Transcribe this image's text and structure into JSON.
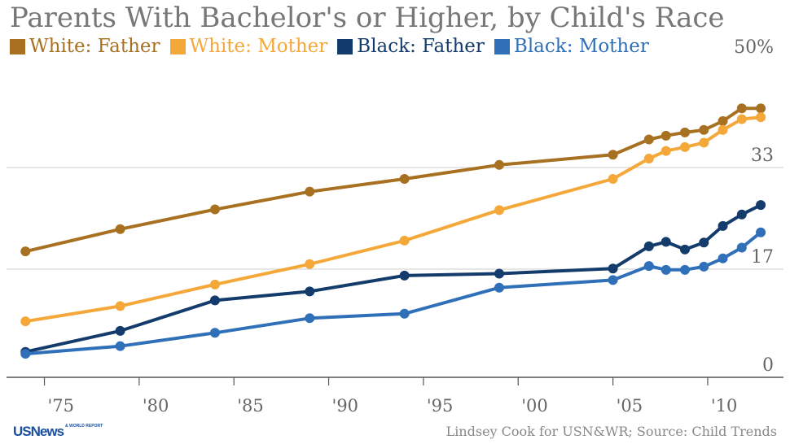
{
  "title": "Parents With Bachelor's or Higher, by Child's Race",
  "credit": "Lindsey Cook for USN&WR; Source: Child Trends",
  "logo": {
    "text": "USNews",
    "tag": "& WORLD REPORT"
  },
  "colors": {
    "white_father": "#a87121",
    "white_mother": "#f5a83a",
    "black_father": "#133b6b",
    "black_mother": "#2f70b8",
    "axis_text": "#666666",
    "grid": "#cccccc"
  },
  "chart_data": {
    "type": "line",
    "title": "Parents With Bachelor's or Higher, by Child's Race",
    "xlabel": "",
    "ylabel": "",
    "xlim": [
      1973,
      2014
    ],
    "ylim": [
      0,
      50
    ],
    "y_ticks": [
      {
        "value": 0,
        "label": "0"
      },
      {
        "value": 17,
        "label": "17"
      },
      {
        "value": 33,
        "label": "33"
      },
      {
        "value": 50,
        "label": "50%"
      }
    ],
    "x_ticks": [
      {
        "value": 1975,
        "label": "'75"
      },
      {
        "value": 1980,
        "label": "'80"
      },
      {
        "value": 1985,
        "label": "'85"
      },
      {
        "value": 1990,
        "label": "'90"
      },
      {
        "value": 1995,
        "label": "'95"
      },
      {
        "value": 2000,
        "label": "'00"
      },
      {
        "value": 2005,
        "label": "'05"
      },
      {
        "value": 2010,
        "label": "'10"
      }
    ],
    "grid": "horizontal",
    "legend_position": "top-left",
    "series": [
      {
        "name": "White: Father",
        "color": "#a87121",
        "points": [
          [
            1974,
            19.8
          ],
          [
            1979,
            23.3
          ],
          [
            1984,
            26.4
          ],
          [
            1989,
            29.2
          ],
          [
            1994,
            31.2
          ],
          [
            1999,
            33.4
          ],
          [
            2005,
            35.0
          ],
          [
            2006.9,
            37.4
          ],
          [
            2007.8,
            38.0
          ],
          [
            2008.8,
            38.5
          ],
          [
            2009.8,
            38.9
          ],
          [
            2010.8,
            40.3
          ],
          [
            2011.8,
            42.3
          ],
          [
            2012.8,
            42.3
          ]
        ]
      },
      {
        "name": "White: Mother",
        "color": "#f5a83a",
        "points": [
          [
            1974,
            8.8
          ],
          [
            1979,
            11.2
          ],
          [
            1984,
            14.6
          ],
          [
            1989,
            17.8
          ],
          [
            1994,
            21.5
          ],
          [
            1999,
            26.3
          ],
          [
            2005,
            31.2
          ],
          [
            2006.9,
            34.4
          ],
          [
            2007.8,
            35.6
          ],
          [
            2008.8,
            36.2
          ],
          [
            2009.8,
            36.9
          ],
          [
            2010.8,
            38.9
          ],
          [
            2011.8,
            40.6
          ],
          [
            2012.8,
            40.9
          ]
        ]
      },
      {
        "name": "Black: Father",
        "color": "#133b6b",
        "points": [
          [
            1974,
            4.0
          ],
          [
            1979,
            7.3
          ],
          [
            1984,
            12.1
          ],
          [
            1989,
            13.5
          ],
          [
            1994,
            16.0
          ],
          [
            1999,
            16.3
          ],
          [
            2005,
            17.1
          ],
          [
            2006.9,
            20.6
          ],
          [
            2007.8,
            21.3
          ],
          [
            2008.8,
            20.1
          ],
          [
            2009.8,
            21.2
          ],
          [
            2010.8,
            23.8
          ],
          [
            2011.8,
            25.6
          ],
          [
            2012.8,
            27.1
          ]
        ]
      },
      {
        "name": "Black: Mother",
        "color": "#2f70b8",
        "points": [
          [
            1974,
            3.7
          ],
          [
            1979,
            4.9
          ],
          [
            1984,
            7.0
          ],
          [
            1989,
            9.3
          ],
          [
            1994,
            10.0
          ],
          [
            1999,
            14.1
          ],
          [
            2005,
            15.3
          ],
          [
            2006.9,
            17.5
          ],
          [
            2007.8,
            16.9
          ],
          [
            2008.8,
            16.9
          ],
          [
            2009.8,
            17.4
          ],
          [
            2010.8,
            18.7
          ],
          [
            2011.8,
            20.4
          ],
          [
            2012.8,
            22.8
          ]
        ]
      }
    ]
  }
}
